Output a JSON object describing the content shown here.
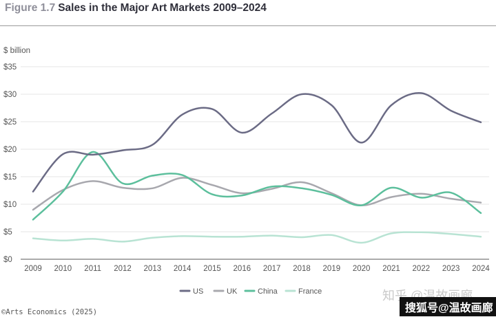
{
  "header": {
    "figure_label": "Figure 1.7",
    "title": "Sales in the Major Art Markets 2009–2024"
  },
  "footer": {
    "source": "©Arts Economics (2025)"
  },
  "watermark": {
    "line1": "知乎 @温故画廊",
    "line2": "搜狐号@温故画廊"
  },
  "colors": {
    "US": "#6b6b85",
    "UK": "#a8a8ae",
    "China": "#5cbf9c",
    "France": "#b8e3d3",
    "grid": "#e4e4e4",
    "axis": "#555555"
  },
  "chart_data": {
    "type": "line",
    "title": "Sales in the Major Art Markets 2009–2024",
    "ylabel": "$ billion",
    "xlabel": "",
    "ylim": [
      0,
      35
    ],
    "yticks": [
      "$0",
      "$5",
      "$10",
      "$15",
      "$20",
      "$25",
      "$30",
      "$35"
    ],
    "grid": true,
    "legend_position": "bottom-center",
    "x": [
      "2009",
      "2010",
      "2011",
      "2012",
      "2013",
      "2014",
      "2015",
      "2016",
      "2017",
      "2018",
      "2019",
      "2020",
      "2021",
      "2022",
      "2023",
      "2024"
    ],
    "series": [
      {
        "name": "US",
        "values": [
          12.3,
          19.1,
          19.0,
          19.8,
          20.8,
          26.3,
          27.3,
          23.0,
          26.5,
          30.0,
          28.0,
          21.2,
          28.0,
          30.2,
          27.0,
          24.9
        ]
      },
      {
        "name": "UK",
        "values": [
          9.0,
          12.6,
          14.2,
          13.0,
          12.9,
          14.8,
          13.5,
          12.0,
          12.8,
          14.0,
          12.0,
          9.8,
          11.3,
          11.9,
          11.0,
          10.3
        ]
      },
      {
        "name": "China",
        "values": [
          7.2,
          12.3,
          19.5,
          13.8,
          15.2,
          15.3,
          11.8,
          11.6,
          13.2,
          12.9,
          11.7,
          9.8,
          13.0,
          11.2,
          12.1,
          8.4
        ]
      },
      {
        "name": "France",
        "values": [
          3.8,
          3.4,
          3.7,
          3.2,
          3.9,
          4.2,
          4.1,
          4.1,
          4.3,
          4.0,
          4.4,
          3.0,
          4.7,
          4.9,
          4.6,
          4.1
        ]
      }
    ]
  }
}
